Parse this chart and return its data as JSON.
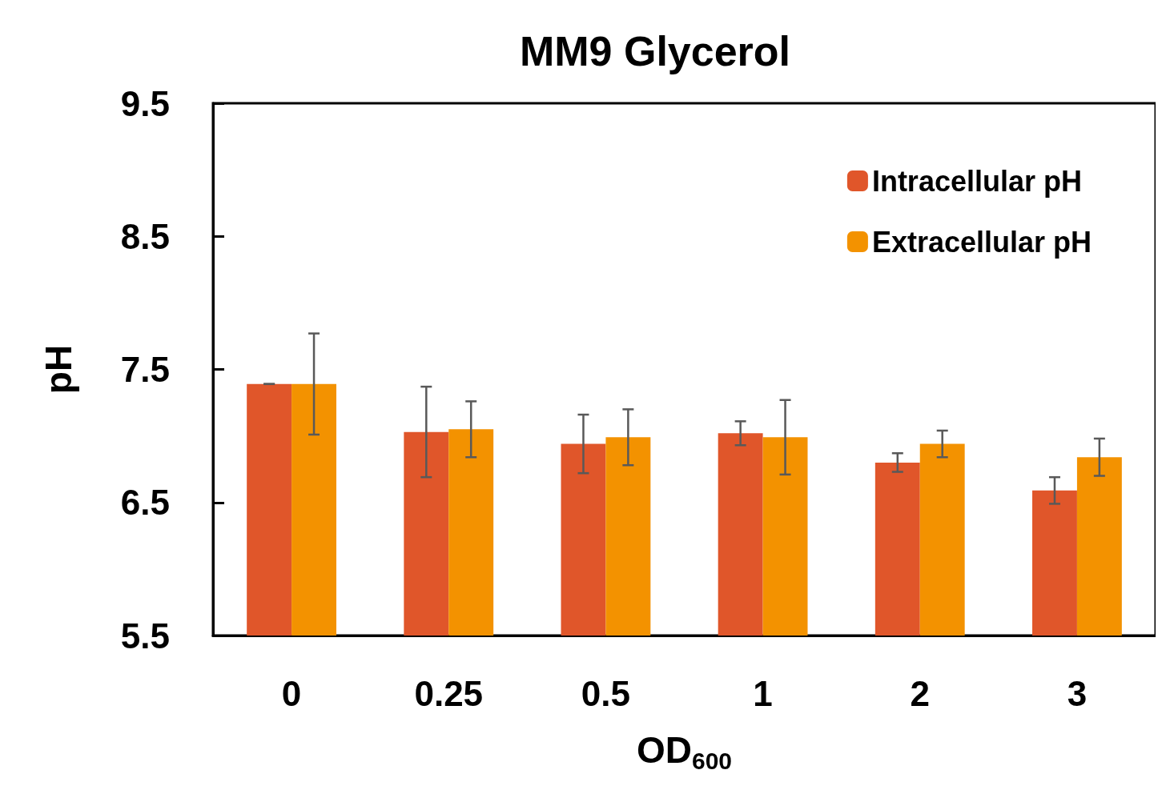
{
  "chart_data": {
    "type": "bar",
    "title": "MM9 Glycerol",
    "xlabel": "OD$_{600}$",
    "ylabel": "pH",
    "categories": [
      "0",
      "0.25",
      "0.5",
      "1",
      "2",
      "3"
    ],
    "series": [
      {
        "name": "Intracellular pH",
        "color": "#e0562a",
        "values": [
          7.39,
          7.03,
          6.94,
          7.02,
          6.8,
          6.59
        ],
        "errors": [
          0,
          0.34,
          0.22,
          0.09,
          0.07,
          0.1
        ]
      },
      {
        "name": "Extracellular pH",
        "color": "#f39200",
        "values": [
          7.39,
          7.05,
          6.99,
          6.99,
          6.94,
          6.84
        ],
        "errors": [
          0.38,
          0.21,
          0.21,
          0.28,
          0.1,
          0.14
        ]
      }
    ],
    "ylim": [
      5.5,
      9.5
    ],
    "yticks": [
      5.5,
      6.5,
      7.5,
      8.5,
      9.5
    ],
    "grid": false,
    "legend": "top right"
  }
}
